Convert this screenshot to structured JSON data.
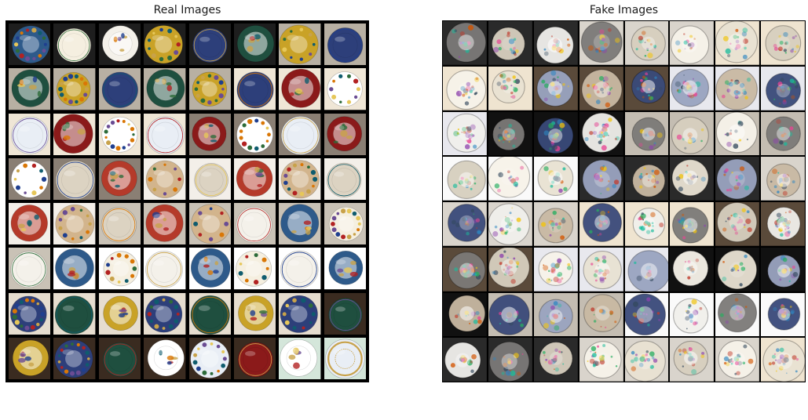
{
  "figure": {
    "left_title": "Real Images",
    "right_title": "Fake Images"
  },
  "palette": {
    "real_backgrounds": [
      "#f3efe9",
      "#c9c2b6",
      "#ffffff",
      "#e6ddcf",
      "#3a2b20",
      "#d4e6da",
      "#1e1e1e",
      "#b8b0a3",
      "#efe6d6",
      "#8a7f74"
    ],
    "real_plates": [
      "#8b1a1a",
      "#1f4f3f",
      "#f4f1ea",
      "#dcd3c2",
      "#e9eef5",
      "#2d3f7a",
      "#f5efe0",
      "#d2b48c",
      "#ffffff",
      "#c9a227",
      "#2e5a8a",
      "#b53a2a"
    ],
    "real_accents": [
      "#1f3f8f",
      "#c8a24a",
      "#2d6b3a",
      "#b22222",
      "#6a4c93",
      "#d97706",
      "#0f5c6e",
      "#e6c75a"
    ],
    "fake_backgrounds": [
      "#fafafa",
      "#2a2a2a",
      "#d9d4cc",
      "#efe4d0",
      "#5a4a3a",
      "#e8e8ee",
      "#111111",
      "#c4bdb2"
    ],
    "fake_plates": [
      "#f1f0ec",
      "#9aa4c0",
      "#d7cfbf",
      "#3a4a7a",
      "#e9e2d3",
      "#7c7a78",
      "#c9b9a3",
      "#f7f3ea"
    ],
    "fake_noise": [
      "#c0392b",
      "#2e86c1",
      "#27ae60",
      "#f1c40f",
      "#8e44ad",
      "#d35400",
      "#1abc9c",
      "#34495e",
      "#e84393"
    ]
  }
}
